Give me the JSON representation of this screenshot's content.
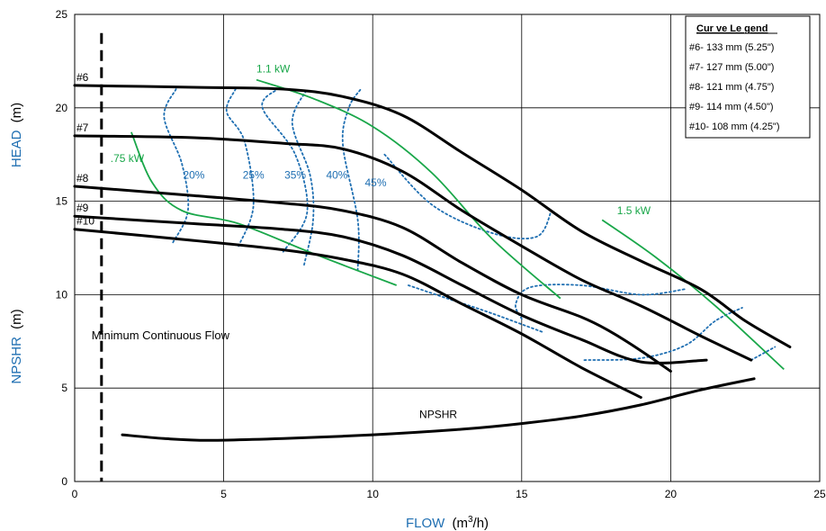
{
  "colors": {
    "axis_label": "#1f6fb2",
    "head_curve": "#000000",
    "efficiency": "#1f6fb2",
    "power": "#1aa74a",
    "grid": "#000000"
  },
  "chart_data": {
    "type": "line",
    "xlabel": "FLOW",
    "xlabel_unit_base": "(m",
    "xlabel_unit_sup": "3",
    "xlabel_unit_tail": "/h)",
    "ylabel_top": "HEAD",
    "ylabel_top_unit": "(m)",
    "ylabel_bottom": "NPSHR",
    "ylabel_bottom_unit": "(m)",
    "xlim": [
      0,
      25
    ],
    "ylim": [
      0,
      25
    ],
    "grid": true,
    "x_ticks": [
      "0",
      "5",
      "10",
      "15",
      "20",
      "25"
    ],
    "y_ticks": [
      "0",
      "5",
      "10",
      "15",
      "20",
      "25"
    ],
    "head_curves": [
      {
        "name": "#6",
        "points": [
          [
            0,
            21.2
          ],
          [
            4,
            21.1
          ],
          [
            7,
            21.0
          ],
          [
            9,
            20.6
          ],
          [
            11,
            19.6
          ],
          [
            13,
            17.6
          ],
          [
            15,
            15.6
          ],
          [
            17,
            13.4
          ],
          [
            19,
            11.8
          ],
          [
            21,
            10.3
          ],
          [
            22.5,
            8.6
          ],
          [
            24,
            7.2
          ]
        ]
      },
      {
        "name": "#7",
        "points": [
          [
            0,
            18.5
          ],
          [
            4,
            18.4
          ],
          [
            7,
            18.1
          ],
          [
            9,
            17.8
          ],
          [
            11,
            16.6
          ],
          [
            13,
            14.5
          ],
          [
            15,
            12.6
          ],
          [
            17,
            10.8
          ],
          [
            19,
            9.4
          ],
          [
            21,
            7.8
          ],
          [
            22.7,
            6.5
          ]
        ]
      },
      {
        "name": "#8",
        "points": [
          [
            0,
            15.8
          ],
          [
            4,
            15.3
          ],
          [
            7,
            14.9
          ],
          [
            9,
            14.5
          ],
          [
            11,
            13.6
          ],
          [
            13,
            11.7
          ],
          [
            15,
            10.0
          ],
          [
            17,
            8.8
          ],
          [
            18,
            8.0
          ],
          [
            19,
            7.0
          ],
          [
            20,
            5.9
          ]
        ]
      },
      {
        "name": "#9",
        "points": [
          [
            0,
            14.2
          ],
          [
            4,
            13.8
          ],
          [
            7,
            13.5
          ],
          [
            9,
            13.1
          ],
          [
            11,
            12.1
          ],
          [
            13,
            10.5
          ],
          [
            15,
            8.9
          ],
          [
            17,
            7.6
          ],
          [
            19,
            6.4
          ],
          [
            21.2,
            6.5
          ]
        ]
      },
      {
        "name": "#10",
        "points": [
          [
            0,
            13.5
          ],
          [
            4,
            12.9
          ],
          [
            7,
            12.4
          ],
          [
            9,
            11.9
          ],
          [
            11,
            11.1
          ],
          [
            13,
            9.5
          ],
          [
            15,
            7.9
          ],
          [
            17,
            6.1
          ],
          [
            19,
            4.5
          ]
        ]
      }
    ],
    "npshr": {
      "name": "NPSHR",
      "points": [
        [
          1.6,
          2.5
        ],
        [
          3,
          2.3
        ],
        [
          4.5,
          2.2
        ],
        [
          7,
          2.3
        ],
        [
          10,
          2.5
        ],
        [
          13,
          2.8
        ],
        [
          15,
          3.1
        ],
        [
          17,
          3.5
        ],
        [
          19,
          4.1
        ],
        [
          21,
          4.9
        ],
        [
          22.8,
          5.5
        ]
      ]
    },
    "efficiency_curves": [
      {
        "name": "20%",
        "points": [
          [
            3.3,
            12.8
          ],
          [
            3.8,
            14.5
          ],
          [
            3.6,
            17.0
          ],
          [
            3.0,
            19.5
          ],
          [
            3.4,
            21.0
          ]
        ]
      },
      {
        "name": "25%",
        "points": [
          [
            5.5,
            12.6
          ],
          [
            6.0,
            14.8
          ],
          [
            5.7,
            18.2
          ],
          [
            5.1,
            19.8
          ],
          [
            5.4,
            21.0
          ]
        ]
      },
      {
        "name": "35%",
        "points": [
          [
            7.0,
            12.3
          ],
          [
            7.8,
            14.4
          ],
          [
            7.4,
            17.5
          ],
          [
            6.3,
            20.0
          ],
          [
            6.8,
            21.0
          ]
        ]
      },
      {
        "name": "40%",
        "points": [
          [
            7.7,
            11.6
          ],
          [
            8.0,
            14.0
          ],
          [
            7.9,
            16.4
          ],
          [
            7.3,
            19.2
          ],
          [
            7.8,
            21.0
          ]
        ]
      },
      {
        "name": "45%",
        "points": [
          [
            9.5,
            11.3
          ],
          [
            9.5,
            14.0
          ],
          [
            9.0,
            18.0
          ],
          [
            9.2,
            20.0
          ],
          [
            9.6,
            21.0
          ]
        ]
      },
      {
        "name": "",
        "points": [
          [
            11.2,
            10.5
          ],
          [
            12.5,
            9.8
          ],
          [
            14.0,
            9.0
          ],
          [
            15.7,
            8.0
          ]
        ]
      },
      {
        "name": "",
        "points": [
          [
            10.4,
            17.5
          ],
          [
            12.0,
            14.8
          ],
          [
            14.0,
            13.3
          ],
          [
            15.5,
            13.1
          ],
          [
            16.0,
            14.5
          ]
        ]
      },
      {
        "name": "",
        "points": [
          [
            15.0,
            8.7
          ],
          [
            14.8,
            9.5
          ],
          [
            15.3,
            10.4
          ],
          [
            17.0,
            10.5
          ],
          [
            19.0,
            10.0
          ],
          [
            20.5,
            10.3
          ]
        ]
      },
      {
        "name": "",
        "points": [
          [
            17.1,
            6.5
          ],
          [
            19.0,
            6.6
          ],
          [
            20.5,
            7.3
          ],
          [
            21.5,
            8.6
          ],
          [
            22.4,
            9.3
          ]
        ]
      },
      {
        "name": "",
        "points": [
          [
            22.7,
            6.5
          ],
          [
            23.5,
            7.2
          ]
        ]
      }
    ],
    "power_curves": [
      {
        "name": ".75 kW",
        "points": [
          [
            1.9,
            18.7
          ],
          [
            2.6,
            16.0
          ],
          [
            3.6,
            14.5
          ],
          [
            5.5,
            13.8
          ],
          [
            8.0,
            12.2
          ],
          [
            10.8,
            10.5
          ]
        ]
      },
      {
        "name": "1.1 kW",
        "points": [
          [
            6.1,
            21.5
          ],
          [
            8.0,
            20.5
          ],
          [
            10.0,
            19.0
          ],
          [
            12.0,
            16.5
          ],
          [
            14.0,
            13.0
          ],
          [
            16.3,
            9.8
          ]
        ]
      },
      {
        "name": "1.5 kW",
        "points": [
          [
            17.7,
            14.0
          ],
          [
            19.5,
            12.0
          ],
          [
            21.5,
            9.4
          ],
          [
            23.8,
            6.0
          ]
        ]
      }
    ],
    "min_flow_line": {
      "x": 0.9,
      "label": "Minimum Continuous Flow"
    },
    "legend": {
      "title": "Cur ve Le gend",
      "entries": [
        "#6- 133 mm (5.25\")",
        "#7- 127 mm (5.00\")",
        "#8- 121 mm (4.75\")",
        "#9- 114 mm (4.50\")",
        "#10- 108 mm (4.25\")"
      ],
      "placement": "top-right"
    }
  }
}
